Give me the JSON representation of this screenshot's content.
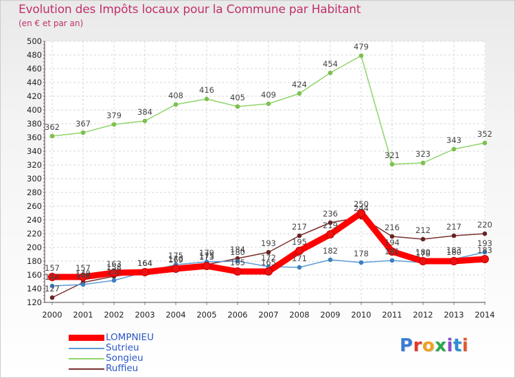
{
  "title": "Evolution des Impôts locaux pour la Commune par Habitant",
  "subtitle": "(en € et par an)",
  "brand": "Proxiti",
  "brand_colors": [
    "#3a7bd5",
    "#e03a2c",
    "#f0a020",
    "#2aa74a",
    "#8b4bd0",
    "#2a8fd0",
    "#e05a2a"
  ],
  "chart_data": {
    "type": "line",
    "title": "Evolution des Impôts locaux pour la Commune par Habitant",
    "ylabel": "(en € et par an)",
    "xlabel": "",
    "grid": true,
    "ylim": [
      120,
      500
    ],
    "yticks": [
      120,
      140,
      160,
      180,
      200,
      220,
      240,
      260,
      280,
      300,
      320,
      340,
      360,
      380,
      400,
      420,
      440,
      460,
      480,
      500
    ],
    "categories": [
      "2000",
      "2001",
      "2002",
      "2003",
      "2004",
      "2005",
      "2006",
      "2007",
      "2008",
      "2009",
      "2010",
      "2011",
      "2012",
      "2013",
      "2014"
    ],
    "legend_position": "bottom-left",
    "series": [
      {
        "name": "Songieu",
        "color": "#8fd46a",
        "marker": "#7cc04e",
        "labels": true,
        "values": [
          362,
          367,
          379,
          384,
          408,
          416,
          405,
          409,
          424,
          454,
          479,
          321,
          323,
          343,
          352
        ]
      },
      {
        "name": "Ruffieu",
        "color": "#7a2e2e",
        "marker": "#6a2222",
        "labels": true,
        "values": [
          127,
          149,
          158,
          164,
          170,
          175,
          184,
          193,
          217,
          236,
          244,
          216,
          212,
          217,
          220
        ]
      },
      {
        "name": "Sutrieu",
        "color": "#5b9bd5",
        "marker": "#3d7fc1",
        "labels": true,
        "values": [
          144,
          146,
          152,
          164,
          175,
          179,
          180,
          172,
          171,
          182,
          178,
          181,
          178,
          183,
          193
        ]
      },
      {
        "name": "LOMPNIEU",
        "color": "#ff0000",
        "marker": "#ee1111",
        "labels": true,
        "values": [
          157,
          157,
          163,
          164,
          169,
          173,
          165,
          165,
          195,
          219,
          250,
          194,
          180,
          180,
          183
        ]
      }
    ]
  }
}
